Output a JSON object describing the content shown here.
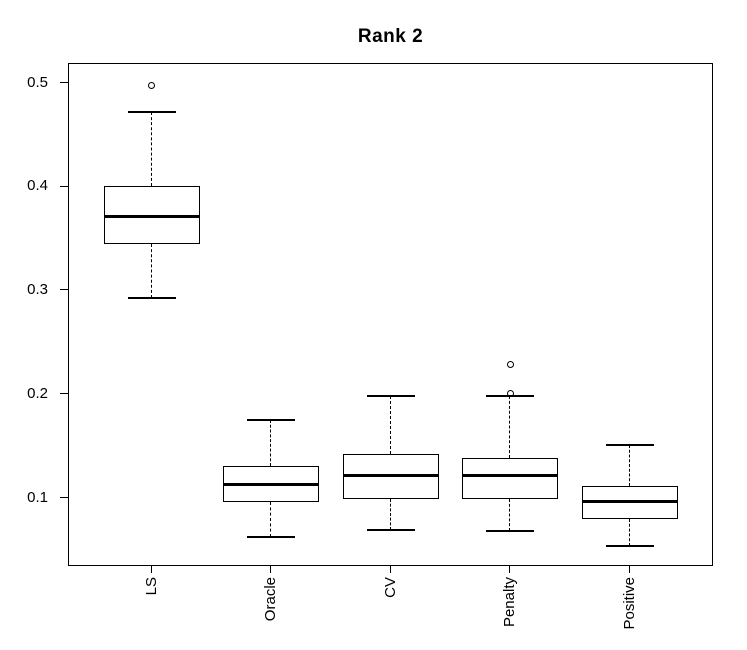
{
  "chart_data": {
    "type": "boxplot",
    "title": "Rank 2",
    "categories": [
      "LS",
      "Oracle",
      "CV",
      "Penalty",
      "Positive"
    ],
    "xlabel": "",
    "ylabel": "",
    "ylim": [
      0.034,
      0.519
    ],
    "yticks": [
      0.1,
      0.2,
      0.3,
      0.4,
      0.5
    ],
    "ytick_labels": [
      "0.1",
      "0.2",
      "0.3",
      "0.4",
      "0.5"
    ],
    "grid": false,
    "orientation": "vertical",
    "colors": {
      "line": "#000000",
      "background": "#ffffff"
    },
    "series": [
      {
        "name": "LS",
        "whisker_low": 0.292,
        "q1": 0.344,
        "median": 0.371,
        "q3": 0.4,
        "whisker_high": 0.472,
        "outliers": [
          0.497
        ]
      },
      {
        "name": "Oracle",
        "whisker_low": 0.062,
        "q1": 0.096,
        "median": 0.112,
        "q3": 0.13,
        "whisker_high": 0.175,
        "outliers": []
      },
      {
        "name": "CV",
        "whisker_low": 0.069,
        "q1": 0.099,
        "median": 0.121,
        "q3": 0.142,
        "whisker_high": 0.198,
        "outliers": []
      },
      {
        "name": "Penalty",
        "whisker_low": 0.068,
        "q1": 0.099,
        "median": 0.121,
        "q3": 0.138,
        "whisker_high": 0.198,
        "outliers": [
          0.2,
          0.228
        ]
      },
      {
        "name": "Positive",
        "whisker_low": 0.053,
        "q1": 0.079,
        "median": 0.096,
        "q3": 0.111,
        "whisker_high": 0.151,
        "outliers": []
      }
    ]
  }
}
